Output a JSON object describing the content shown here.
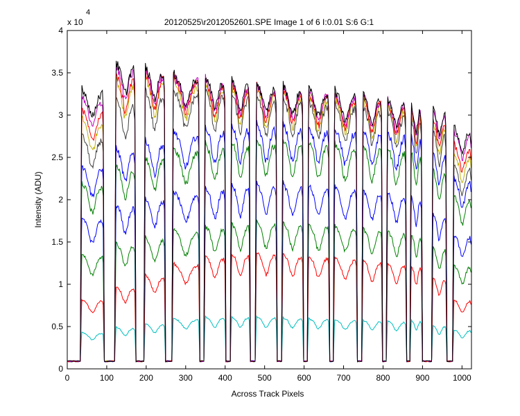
{
  "chart_data": {
    "type": "line",
    "title": "20120525\\r2012052601.SPE  Image 1 of 6  I:0.01  S:6  G:1",
    "xlabel": "Across Track Pixels",
    "ylabel": "Intensity (ADU)",
    "y_exponent_label": "x 10",
    "y_exponent": "4",
    "xlim": [
      0,
      1024
    ],
    "ylim": [
      0,
      40000
    ],
    "x_ticks": [
      0,
      100,
      200,
      300,
      400,
      500,
      600,
      700,
      800,
      900,
      1000
    ],
    "y_ticks": [
      0,
      5000,
      10000,
      15000,
      20000,
      25000,
      30000,
      35000,
      40000
    ],
    "x_tick_labels": [
      "0",
      "100",
      "200",
      "300",
      "400",
      "500",
      "600",
      "700",
      "800",
      "900",
      "1000"
    ],
    "y_tick_labels": [
      "0",
      "0.5",
      "1",
      "1.5",
      "2",
      "2.5",
      "3",
      "3.5",
      "4"
    ],
    "grid": false,
    "legend": "none",
    "baseline": 900,
    "segments": [
      {
        "start": 35,
        "end": 92
      },
      {
        "start": 122,
        "end": 172
      },
      {
        "start": 196,
        "end": 247
      },
      {
        "start": 267,
        "end": 334
      },
      {
        "start": 348,
        "end": 400
      },
      {
        "start": 415,
        "end": 462
      },
      {
        "start": 478,
        "end": 530
      },
      {
        "start": 545,
        "end": 597
      },
      {
        "start": 610,
        "end": 663
      },
      {
        "start": 676,
        "end": 733
      },
      {
        "start": 748,
        "end": 797
      },
      {
        "start": 810,
        "end": 858
      },
      {
        "start": 870,
        "end": 898
      },
      {
        "start": 925,
        "end": 960
      },
      {
        "start": 978,
        "end": 1024
      }
    ],
    "series": [
      {
        "color": "#00bfbf",
        "levels": [
          4200,
          4800,
          5200,
          5800,
          6000,
          6000,
          6000,
          5900,
          5800,
          5700,
          5600,
          5500,
          5600,
          5000,
          4500
        ]
      },
      {
        "color": "#ff0000",
        "levels": [
          8000,
          9500,
          10800,
          12200,
          13000,
          13300,
          13400,
          13200,
          13000,
          12800,
          12500,
          12200,
          12000,
          10500,
          8000
        ]
      },
      {
        "color": "#008000",
        "levels": [
          13200,
          14500,
          15200,
          16000,
          16500,
          16800,
          17000,
          16900,
          16700,
          16500,
          16200,
          15900,
          15700,
          14000,
          12000
        ]
      },
      {
        "color": "#0000ff",
        "levels": [
          17500,
          19000,
          19800,
          20500,
          21000,
          21300,
          21500,
          21400,
          21200,
          21000,
          20700,
          20400,
          20000,
          18000,
          15500
        ]
      },
      {
        "color": "#008000",
        "levels": [
          21500,
          23500,
          24500,
          25500,
          26000,
          26300,
          26500,
          26400,
          26200,
          26000,
          25800,
          25500,
          25200,
          23000,
          20000
        ]
      },
      {
        "color": "#0000ff",
        "levels": [
          23500,
          25500,
          26500,
          27500,
          28000,
          28200,
          28300,
          28200,
          28000,
          27800,
          27600,
          27300,
          27000,
          25000,
          22000
        ]
      },
      {
        "color": "#404040",
        "levels": [
          27000,
          31000,
          32200,
          32300,
          32200,
          31800,
          31600,
          31300,
          31000,
          30700,
          30300,
          29800,
          29000,
          27500,
          23500
        ]
      },
      {
        "color": "#c0b000",
        "levels": [
          29000,
          33500,
          33700,
          33300,
          33000,
          32600,
          32300,
          32000,
          31700,
          31400,
          31000,
          30500,
          29800,
          28500,
          25000
        ]
      },
      {
        "color": "#ff0000",
        "levels": [
          30000,
          34000,
          34200,
          33800,
          33300,
          32900,
          32600,
          32300,
          32000,
          31700,
          31300,
          30800,
          30000,
          29000,
          26000
        ]
      },
      {
        "color": "#bf00bf",
        "levels": [
          31500,
          35000,
          34600,
          34000,
          33600,
          33200,
          32900,
          32600,
          32300,
          32000,
          31600,
          31100,
          30400,
          29800,
          27500
        ]
      },
      {
        "color": "#000000",
        "levels": [
          32500,
          35500,
          34900,
          34200,
          33800,
          33400,
          33100,
          32800,
          32500,
          32200,
          31800,
          31300,
          30600,
          30200,
          28000
        ]
      }
    ]
  }
}
